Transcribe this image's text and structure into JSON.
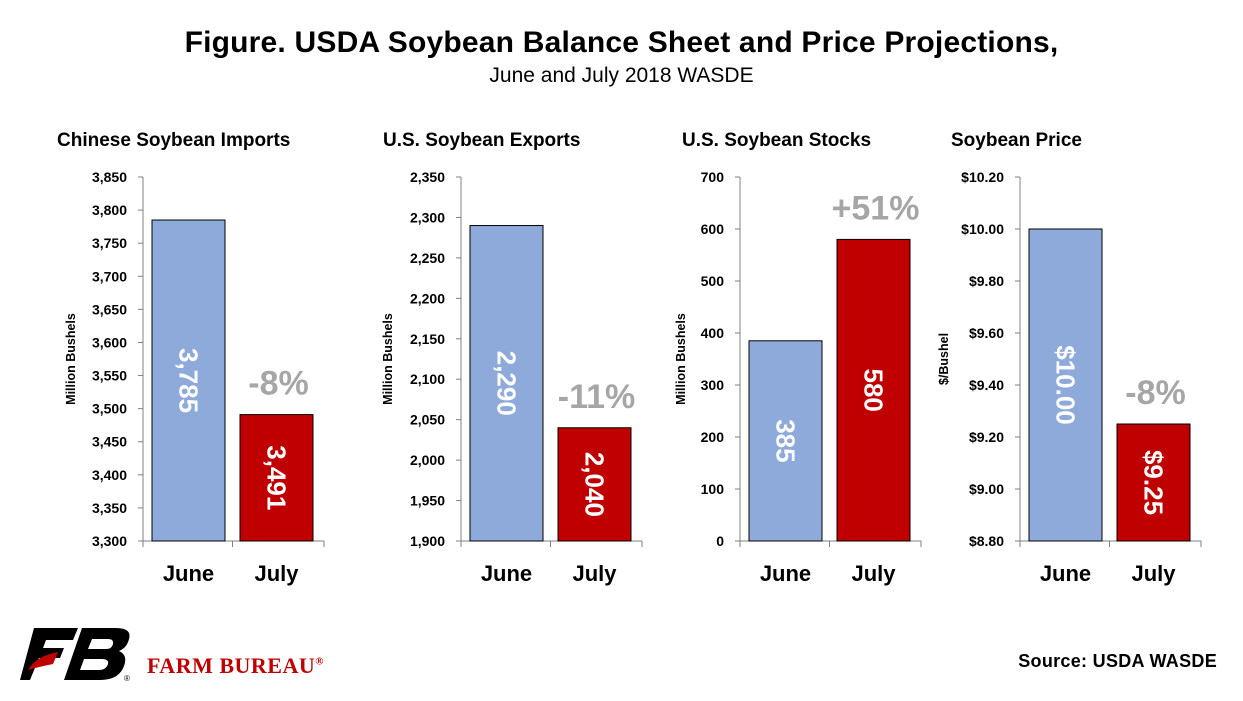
{
  "header": {
    "title": "Figure. USDA Soybean Balance Sheet and Price Projections,",
    "subtitle": "June and July 2018 WASDE"
  },
  "footer": {
    "source": "Source: USDA WASDE",
    "brand": "FARM BUREAU",
    "brand_mark": "®"
  },
  "colors": {
    "june": "#8EAADB",
    "july": "#C00000",
    "change_label": "#A6A6A6",
    "brand": "#C00000"
  },
  "chart_data": [
    {
      "type": "bar",
      "title": "Chinese Soybean Imports",
      "ylabel": "Million Bushels",
      "categories": [
        "June",
        "July"
      ],
      "values": [
        3785,
        3491
      ],
      "value_labels": [
        "3,785",
        "3,491"
      ],
      "change_label": "-8%",
      "ylim": [
        3300,
        3850
      ],
      "yticks": [
        3300,
        3350,
        3400,
        3450,
        3500,
        3550,
        3600,
        3650,
        3700,
        3750,
        3800,
        3850
      ],
      "ytick_labels": [
        "3,300",
        "3,350",
        "3,400",
        "3,450",
        "3,500",
        "3,550",
        "3,600",
        "3,650",
        "3,700",
        "3,750",
        "3,800",
        "3,850"
      ],
      "grid": false,
      "legend": "none"
    },
    {
      "type": "bar",
      "title": "U.S. Soybean Exports",
      "ylabel": "Million Bushels",
      "categories": [
        "June",
        "July"
      ],
      "values": [
        2290,
        2040
      ],
      "value_labels": [
        "2,290",
        "2,040"
      ],
      "change_label": "-11%",
      "ylim": [
        1900,
        2350
      ],
      "yticks": [
        1900,
        1950,
        2000,
        2050,
        2100,
        2150,
        2200,
        2250,
        2300,
        2350
      ],
      "ytick_labels": [
        "1,900",
        "1,950",
        "2,000",
        "2,050",
        "2,100",
        "2,150",
        "2,200",
        "2,250",
        "2,300",
        "2,350"
      ],
      "grid": false,
      "legend": "none"
    },
    {
      "type": "bar",
      "title": "U.S. Soybean Stocks",
      "ylabel": "Million Bushels",
      "categories": [
        "June",
        "July"
      ],
      "values": [
        385,
        580
      ],
      "value_labels": [
        "385",
        "580"
      ],
      "change_label": "+51%",
      "ylim": [
        0,
        700
      ],
      "yticks": [
        0,
        100,
        200,
        300,
        400,
        500,
        600,
        700
      ],
      "ytick_labels": [
        "0",
        "100",
        "200",
        "300",
        "400",
        "500",
        "600",
        "700"
      ],
      "grid": false,
      "legend": "none"
    },
    {
      "type": "bar",
      "title": "Soybean Price",
      "ylabel": "$/Bushel",
      "categories": [
        "June",
        "July"
      ],
      "values": [
        10.0,
        9.25
      ],
      "value_labels": [
        "$10.00",
        "$9.25"
      ],
      "change_label": "-8%",
      "ylim": [
        8.8,
        10.2
      ],
      "yticks": [
        8.8,
        9.0,
        9.2,
        9.4,
        9.6,
        9.8,
        10.0,
        10.2
      ],
      "ytick_labels": [
        "$8.80",
        "$9.00",
        "$9.20",
        "$9.40",
        "$9.60",
        "$9.80",
        "$10.00",
        "$10.20"
      ],
      "grid": false,
      "legend": "none"
    }
  ]
}
